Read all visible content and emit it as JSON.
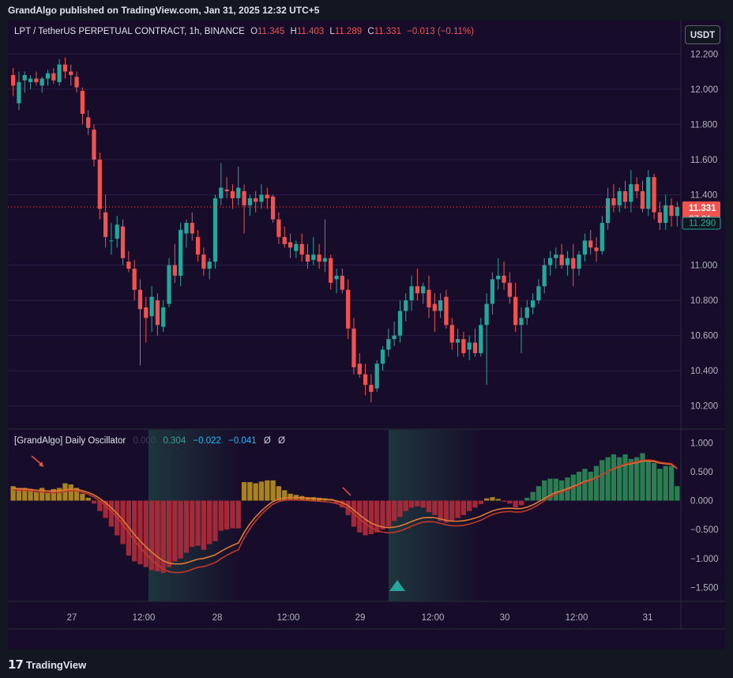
{
  "published": "GrandAlgo published on TradingView.com, Jan 31, 2025 12:32 UTC+5",
  "legend": {
    "symbol": "LPT / TetherUS PERPETUAL CONTRACT, 1h, BINANCE",
    "o_label": "O",
    "o": "11.345",
    "h_label": "H",
    "h": "11.403",
    "l_label": "L",
    "l": "11.289",
    "c_label": "C",
    "c": "11.331",
    "change": "−0.013 (−0.11%)"
  },
  "currency_button": "USDT",
  "oscillator": {
    "name": "[GrandAlgo] Daily Oscillator",
    "v0": "0.000",
    "v1": "0.304",
    "v2": "−0.022",
    "v3": "−0.041",
    "v4": "Ø",
    "v5": "Ø"
  },
  "price_axis": [
    "12.200",
    "12.000",
    "11.800",
    "11.600",
    "11.400",
    "11.000",
    "10.800",
    "10.600",
    "10.400",
    "10.200"
  ],
  "osc_axis": [
    "1.000",
    "0.500",
    "0.000",
    "−0.500",
    "−1.000",
    "−1.500"
  ],
  "time_axis": [
    "27",
    "12:00",
    "28",
    "12:00",
    "29",
    "12:00",
    "30",
    "12:00",
    "31"
  ],
  "last_price": {
    "price": "11.331",
    "countdown": "27:01",
    "secondary": "11.290"
  },
  "brand": "TradingView",
  "colors": {
    "up": "#26a69a",
    "down": "#ef5350",
    "hist_gold": "#b8901f",
    "hist_red": "#b22b3a",
    "hist_green": "#2e8b57",
    "bg": "#170c2a"
  },
  "chart_data": {
    "type": "candlestick",
    "timeframe": "1h",
    "ohlc": [
      [
        12.08,
        12.12,
        11.96,
        12.02
      ],
      [
        11.92,
        12.1,
        11.88,
        12.04
      ],
      [
        12.05,
        12.1,
        11.98,
        12.08
      ],
      [
        12.04,
        12.08,
        12.0,
        12.06
      ],
      [
        12.06,
        12.1,
        12.02,
        12.04
      ],
      [
        12.02,
        12.07,
        11.98,
        12.06
      ],
      [
        12.06,
        12.11,
        12.02,
        12.09
      ],
      [
        12.09,
        12.12,
        12.03,
        12.05
      ],
      [
        12.04,
        12.17,
        12.02,
        12.14
      ],
      [
        12.14,
        12.18,
        12.06,
        12.1
      ],
      [
        12.1,
        12.14,
        12.02,
        12.08
      ],
      [
        12.07,
        12.1,
        11.98,
        12.01
      ],
      [
        11.99,
        12.01,
        11.8,
        11.86
      ],
      [
        11.84,
        11.88,
        11.74,
        11.78
      ],
      [
        11.77,
        11.8,
        11.56,
        11.6
      ],
      [
        11.6,
        11.64,
        11.26,
        11.32
      ],
      [
        11.3,
        11.4,
        11.1,
        11.16
      ],
      [
        11.14,
        11.24,
        11.06,
        11.14
      ],
      [
        11.15,
        11.28,
        11.1,
        11.23
      ],
      [
        11.22,
        11.26,
        11.0,
        11.04
      ],
      [
        11.02,
        11.08,
        10.96,
        10.98
      ],
      [
        10.98,
        11.03,
        10.8,
        10.86
      ],
      [
        10.86,
        10.92,
        10.43,
        10.75
      ],
      [
        10.76,
        10.82,
        10.56,
        10.7
      ],
      [
        10.71,
        10.88,
        10.62,
        10.82
      ],
      [
        10.8,
        10.84,
        10.6,
        10.66
      ],
      [
        10.65,
        10.8,
        10.62,
        10.76
      ],
      [
        10.78,
        11.04,
        10.76,
        11.0
      ],
      [
        11.0,
        11.12,
        10.9,
        10.94
      ],
      [
        10.94,
        11.24,
        10.88,
        11.2
      ],
      [
        11.18,
        11.26,
        11.1,
        11.24
      ],
      [
        11.24,
        11.3,
        11.14,
        11.18
      ],
      [
        11.16,
        11.2,
        11.02,
        11.06
      ],
      [
        11.06,
        11.1,
        10.94,
        10.98
      ],
      [
        10.98,
        11.04,
        10.92,
        11.02
      ],
      [
        11.02,
        11.4,
        10.98,
        11.38
      ],
      [
        11.38,
        11.58,
        11.34,
        11.44
      ],
      [
        11.43,
        11.5,
        11.38,
        11.42
      ],
      [
        11.42,
        11.46,
        11.32,
        11.38
      ],
      [
        11.38,
        11.56,
        11.34,
        11.44
      ],
      [
        11.42,
        11.46,
        11.18,
        11.34
      ],
      [
        11.34,
        11.4,
        11.28,
        11.38
      ],
      [
        11.38,
        11.42,
        11.3,
        11.36
      ],
      [
        11.36,
        11.46,
        11.32,
        11.4
      ],
      [
        11.4,
        11.44,
        11.32,
        11.38
      ],
      [
        11.39,
        11.4,
        11.24,
        11.26
      ],
      [
        11.26,
        11.3,
        11.12,
        11.16
      ],
      [
        11.16,
        11.22,
        11.1,
        11.12
      ],
      [
        11.13,
        11.18,
        11.04,
        11.1
      ],
      [
        11.08,
        11.14,
        11.04,
        11.12
      ],
      [
        11.12,
        11.18,
        11.02,
        11.06
      ],
      [
        11.06,
        11.12,
        10.98,
        11.02
      ],
      [
        11.03,
        11.16,
        11.0,
        11.06
      ],
      [
        11.06,
        11.12,
        10.98,
        11.02
      ],
      [
        11.02,
        11.26,
        10.96,
        11.04
      ],
      [
        11.04,
        11.06,
        10.86,
        10.9
      ],
      [
        10.92,
        10.98,
        10.84,
        10.94
      ],
      [
        10.94,
        10.98,
        10.84,
        10.86
      ],
      [
        10.86,
        10.92,
        10.58,
        10.64
      ],
      [
        10.64,
        10.7,
        10.38,
        10.42
      ],
      [
        10.44,
        10.5,
        10.36,
        10.38
      ],
      [
        10.38,
        10.44,
        10.26,
        10.32
      ],
      [
        10.32,
        10.38,
        10.22,
        10.28
      ],
      [
        10.3,
        10.46,
        10.28,
        10.44
      ],
      [
        10.44,
        10.54,
        10.4,
        10.52
      ],
      [
        10.52,
        10.64,
        10.48,
        10.58
      ],
      [
        10.58,
        10.68,
        10.54,
        10.6
      ],
      [
        10.6,
        10.8,
        10.56,
        10.74
      ],
      [
        10.74,
        10.84,
        10.68,
        10.8
      ],
      [
        10.8,
        10.94,
        10.74,
        10.88
      ],
      [
        10.88,
        10.98,
        10.8,
        10.84
      ],
      [
        10.84,
        10.9,
        10.78,
        10.88
      ],
      [
        10.86,
        10.94,
        10.7,
        10.76
      ],
      [
        10.78,
        10.84,
        10.62,
        10.74
      ],
      [
        10.74,
        10.84,
        10.7,
        10.8
      ],
      [
        10.82,
        10.86,
        10.64,
        10.66
      ],
      [
        10.66,
        10.7,
        10.52,
        10.56
      ],
      [
        10.56,
        10.64,
        10.48,
        10.58
      ],
      [
        10.58,
        10.62,
        10.48,
        10.5
      ],
      [
        10.52,
        10.6,
        10.46,
        10.56
      ],
      [
        10.56,
        10.64,
        10.48,
        10.5
      ],
      [
        10.5,
        10.7,
        10.48,
        10.66
      ],
      [
        10.66,
        10.84,
        10.32,
        10.78
      ],
      [
        10.78,
        10.96,
        10.72,
        10.92
      ],
      [
        10.92,
        11.04,
        10.86,
        10.94
      ],
      [
        10.94,
        11.02,
        10.86,
        10.9
      ],
      [
        10.9,
        10.96,
        10.78,
        10.82
      ],
      [
        10.82,
        10.9,
        10.62,
        10.66
      ],
      [
        10.66,
        10.76,
        10.5,
        10.7
      ],
      [
        10.7,
        10.8,
        10.66,
        10.76
      ],
      [
        10.76,
        10.84,
        10.72,
        10.8
      ],
      [
        10.8,
        10.92,
        10.78,
        10.88
      ],
      [
        10.88,
        11.04,
        10.84,
        11.0
      ],
      [
        11.0,
        11.08,
        10.94,
        11.04
      ],
      [
        11.04,
        11.1,
        10.98,
        11.06
      ],
      [
        11.06,
        11.12,
        10.98,
        11.0
      ],
      [
        11.0,
        11.08,
        10.94,
        11.04
      ],
      [
        11.04,
        11.12,
        10.88,
        10.98
      ],
      [
        10.98,
        11.08,
        10.94,
        11.06
      ],
      [
        11.06,
        11.18,
        11.02,
        11.14
      ],
      [
        11.14,
        11.2,
        11.06,
        11.1
      ],
      [
        11.1,
        11.16,
        11.02,
        11.08
      ],
      [
        11.08,
        11.28,
        11.06,
        11.24
      ],
      [
        11.24,
        11.44,
        11.2,
        11.38
      ],
      [
        11.38,
        11.46,
        11.3,
        11.34
      ],
      [
        11.34,
        11.44,
        11.3,
        11.42
      ],
      [
        11.42,
        11.48,
        11.32,
        11.36
      ],
      [
        11.36,
        11.54,
        11.3,
        11.46
      ],
      [
        11.46,
        11.5,
        11.38,
        11.42
      ],
      [
        11.42,
        11.48,
        11.3,
        11.32
      ],
      [
        11.32,
        11.54,
        11.28,
        11.5
      ],
      [
        11.5,
        11.52,
        11.26,
        11.3
      ],
      [
        11.3,
        11.36,
        11.2,
        11.24
      ],
      [
        11.24,
        11.4,
        11.2,
        11.34
      ],
      [
        11.34,
        11.38,
        11.22,
        11.28
      ],
      [
        11.28,
        11.36,
        11.22,
        11.33
      ]
    ],
    "last": 11.331,
    "oscillator_histogram": [
      0.25,
      0.22,
      0.22,
      0.2,
      0.15,
      0.22,
      0.15,
      0.2,
      0.22,
      0.3,
      0.28,
      0.22,
      0.12,
      0.05,
      -0.05,
      -0.18,
      -0.3,
      -0.45,
      -0.6,
      -0.75,
      -0.95,
      -1.05,
      -1.1,
      -1.15,
      -1.2,
      -1.22,
      -1.25,
      -1.15,
      -1.05,
      -1.0,
      -0.9,
      -0.8,
      -0.78,
      -0.85,
      -0.75,
      -0.7,
      -0.52,
      -0.5,
      -0.48,
      -0.48,
      0.32,
      0.32,
      0.3,
      0.33,
      0.35,
      0.35,
      0.25,
      0.18,
      0.12,
      0.1,
      0.08,
      0.06,
      0.06,
      0.05,
      0.04,
      0.03,
      -0.05,
      -0.12,
      -0.25,
      -0.45,
      -0.55,
      -0.6,
      -0.58,
      -0.55,
      -0.5,
      -0.45,
      -0.35,
      -0.28,
      -0.18,
      -0.12,
      -0.1,
      -0.12,
      -0.2,
      -0.25,
      -0.35,
      -0.38,
      -0.35,
      -0.3,
      -0.25,
      -0.18,
      -0.12,
      -0.06,
      0.04,
      0.06,
      0.03,
      -0.02,
      -0.05,
      -0.12,
      -0.08,
      0.05,
      0.15,
      0.25,
      0.35,
      0.38,
      0.38,
      0.35,
      0.4,
      0.45,
      0.5,
      0.55,
      0.5,
      0.6,
      0.7,
      0.75,
      0.8,
      0.75,
      0.8,
      0.72,
      0.75,
      0.82,
      0.7,
      0.65,
      0.55,
      0.6,
      0.6,
      0.25
    ],
    "y_axis": {
      "min": 10.1,
      "max": 12.3
    },
    "osc_axis": {
      "min": -1.85,
      "max": 1.1
    }
  }
}
